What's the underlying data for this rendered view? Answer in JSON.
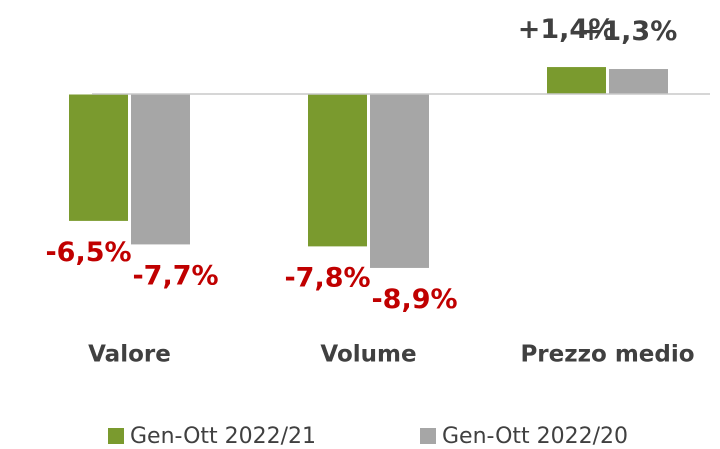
{
  "chart_data": {
    "type": "bar",
    "categories": [
      "Valore",
      "Volume",
      "Prezzo medio"
    ],
    "series": [
      {
        "name": "Gen-Ott 2022/21",
        "color": "#7a9a2e",
        "values": [
          -6.5,
          -7.8,
          1.4
        ],
        "value_labels": [
          "-6,5%",
          "-7,8%",
          "+1,4%"
        ]
      },
      {
        "name": "Gen-Ott 2022/20",
        "color": "#a6a6a6",
        "values": [
          -7.7,
          -8.9,
          1.3
        ],
        "value_labels": [
          "-7,7%",
          "-8,9%",
          "+1,3%"
        ]
      }
    ],
    "negative_label_color": "#c00000",
    "positive_label_color": "#404040",
    "legend": "bottom"
  }
}
